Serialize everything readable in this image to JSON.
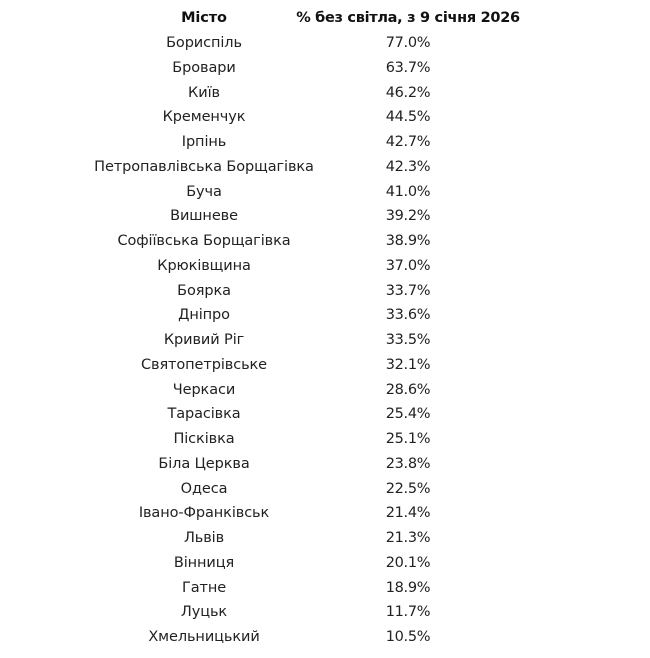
{
  "table": {
    "headers": [
      "Місто",
      "% без світла, з 9 січня 2026"
    ],
    "rows": [
      [
        "Бориспіль",
        "77.0%"
      ],
      [
        "Бровари",
        "63.7%"
      ],
      [
        "Київ",
        "46.2%"
      ],
      [
        "Кременчук",
        "44.5%"
      ],
      [
        "Ірпінь",
        "42.7%"
      ],
      [
        "Петропавлівська Борщагівка",
        "42.3%"
      ],
      [
        "Буча",
        "41.0%"
      ],
      [
        "Вишневе",
        "39.2%"
      ],
      [
        "Софіївська Борщагівка",
        "38.9%"
      ],
      [
        "Крюківщина",
        "37.0%"
      ],
      [
        "Боярка",
        "33.7%"
      ],
      [
        "Дніпро",
        "33.6%"
      ],
      [
        "Кривий Ріг",
        "33.5%"
      ],
      [
        "Святопетрівське",
        "32.1%"
      ],
      [
        "Черкаси",
        "28.6%"
      ],
      [
        "Тарасівка",
        "25.4%"
      ],
      [
        "Пісківка",
        "25.1%"
      ],
      [
        "Біла Церква",
        "23.8%"
      ],
      [
        "Одеса",
        "22.5%"
      ],
      [
        "Івано-Франківськ",
        "21.4%"
      ],
      [
        "Львів",
        "21.3%"
      ],
      [
        "Вінниця",
        "20.1%"
      ],
      [
        "Гатне",
        "18.9%"
      ],
      [
        "Луцьк",
        "11.7%"
      ],
      [
        "Хмельницький",
        "10.5%"
      ]
    ]
  }
}
